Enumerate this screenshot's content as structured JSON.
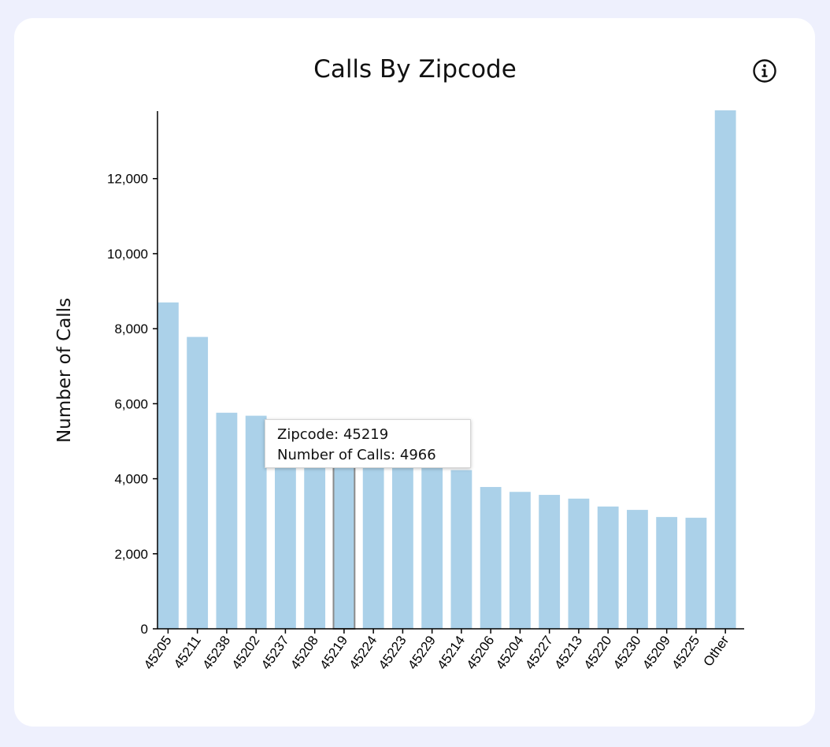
{
  "info_icon": "info-circle-icon",
  "chart_data": {
    "type": "bar",
    "title": "Calls By Zipcode",
    "xlabel": "",
    "ylabel": "Number of Calls",
    "ylim": [
      0,
      13800
    ],
    "yticks": [
      0,
      2000,
      4000,
      6000,
      8000,
      10000,
      12000
    ],
    "ytick_labels": [
      "0",
      "2,000",
      "4,000",
      "6,000",
      "8,000",
      "10,000",
      "12,000"
    ],
    "categories": [
      "45205",
      "45211",
      "45238",
      "45202",
      "45237",
      "45208",
      "45219",
      "45224",
      "45223",
      "45229",
      "45214",
      "45206",
      "45204",
      "45227",
      "45213",
      "45220",
      "45230",
      "45209",
      "45225",
      "Other"
    ],
    "values": [
      8700,
      7780,
      5760,
      5680,
      4950,
      4950,
      4966,
      4900,
      4850,
      4300,
      4230,
      3780,
      3650,
      3570,
      3470,
      3260,
      3170,
      2980,
      2960,
      13820
    ],
    "bar_color": "#abd1e9",
    "highlight_color": "#8a8a8a",
    "highlight_index": 6,
    "grid": false,
    "tooltip": {
      "line1": "Zipcode: 45219",
      "line2": "Number of Calls: 4966"
    }
  }
}
